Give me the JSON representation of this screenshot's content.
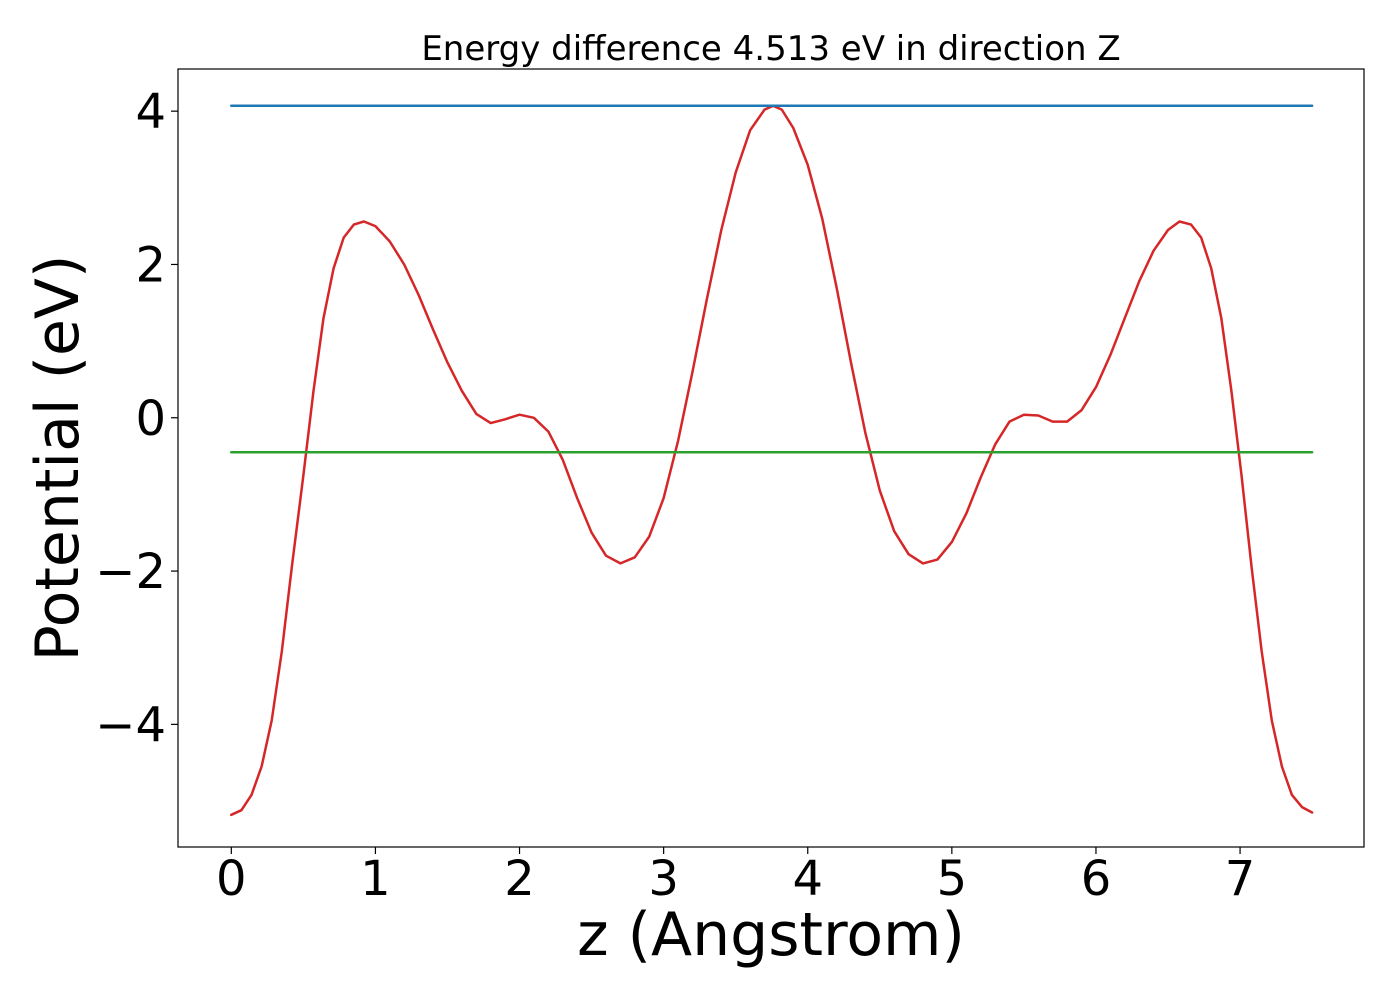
{
  "chart_data": {
    "type": "line",
    "title": "Energy difference 4.513 eV in direction Z",
    "xlabel": "z (Angstrom)",
    "ylabel": "Potential (eV)",
    "xlim": [
      -0.37,
      7.86
    ],
    "ylim": [
      -5.6,
      4.55
    ],
    "xticks": [
      0,
      1,
      2,
      3,
      4,
      5,
      6,
      7
    ],
    "xtick_labels": [
      "0",
      "1",
      "2",
      "3",
      "4",
      "5",
      "6",
      "7"
    ],
    "yticks": [
      -4,
      -2,
      0,
      2,
      4
    ],
    "ytick_labels": [
      "−4",
      "−2",
      "0",
      "2",
      "4"
    ],
    "grid": false,
    "series": [
      {
        "color": "#d62728",
        "points": [
          [
            0.0,
            -5.18
          ],
          [
            0.07,
            -5.12
          ],
          [
            0.14,
            -4.92
          ],
          [
            0.21,
            -4.55
          ],
          [
            0.28,
            -3.95
          ],
          [
            0.35,
            -3.05
          ],
          [
            0.42,
            -1.95
          ],
          [
            0.5,
            -0.75
          ],
          [
            0.57,
            0.35
          ],
          [
            0.64,
            1.3
          ],
          [
            0.71,
            1.95
          ],
          [
            0.78,
            2.35
          ],
          [
            0.85,
            2.52
          ],
          [
            0.92,
            2.56
          ],
          [
            1.0,
            2.5
          ],
          [
            1.1,
            2.3
          ],
          [
            1.2,
            2.0
          ],
          [
            1.3,
            1.6
          ],
          [
            1.4,
            1.15
          ],
          [
            1.5,
            0.72
          ],
          [
            1.6,
            0.35
          ],
          [
            1.7,
            0.05
          ],
          [
            1.8,
            -0.07
          ],
          [
            1.9,
            -0.02
          ],
          [
            2.0,
            0.04
          ],
          [
            2.1,
            0.0
          ],
          [
            2.2,
            -0.18
          ],
          [
            2.3,
            -0.55
          ],
          [
            2.4,
            -1.05
          ],
          [
            2.5,
            -1.5
          ],
          [
            2.6,
            -1.8
          ],
          [
            2.7,
            -1.9
          ],
          [
            2.8,
            -1.82
          ],
          [
            2.9,
            -1.55
          ],
          [
            3.0,
            -1.05
          ],
          [
            3.1,
            -0.3
          ],
          [
            3.2,
            0.6
          ],
          [
            3.3,
            1.55
          ],
          [
            3.4,
            2.45
          ],
          [
            3.5,
            3.2
          ],
          [
            3.6,
            3.75
          ],
          [
            3.7,
            4.02
          ],
          [
            3.76,
            4.07
          ],
          [
            3.82,
            4.02
          ],
          [
            3.9,
            3.78
          ],
          [
            4.0,
            3.3
          ],
          [
            4.1,
            2.6
          ],
          [
            4.2,
            1.7
          ],
          [
            4.3,
            0.72
          ],
          [
            4.4,
            -0.2
          ],
          [
            4.5,
            -0.95
          ],
          [
            4.6,
            -1.48
          ],
          [
            4.7,
            -1.78
          ],
          [
            4.8,
            -1.9
          ],
          [
            4.9,
            -1.85
          ],
          [
            5.0,
            -1.62
          ],
          [
            5.1,
            -1.25
          ],
          [
            5.2,
            -0.78
          ],
          [
            5.3,
            -0.35
          ],
          [
            5.4,
            -0.05
          ],
          [
            5.5,
            0.04
          ],
          [
            5.6,
            0.03
          ],
          [
            5.7,
            -0.05
          ],
          [
            5.8,
            -0.05
          ],
          [
            5.9,
            0.1
          ],
          [
            6.0,
            0.4
          ],
          [
            6.1,
            0.82
          ],
          [
            6.2,
            1.3
          ],
          [
            6.3,
            1.78
          ],
          [
            6.4,
            2.18
          ],
          [
            6.5,
            2.45
          ],
          [
            6.58,
            2.56
          ],
          [
            6.66,
            2.52
          ],
          [
            6.73,
            2.35
          ],
          [
            6.8,
            1.95
          ],
          [
            6.87,
            1.3
          ],
          [
            6.94,
            0.35
          ],
          [
            7.01,
            -0.75
          ],
          [
            7.08,
            -1.95
          ],
          [
            7.15,
            -3.05
          ],
          [
            7.22,
            -3.95
          ],
          [
            7.29,
            -4.55
          ],
          [
            7.36,
            -4.92
          ],
          [
            7.43,
            -5.08
          ],
          [
            7.5,
            -5.15
          ]
        ]
      },
      {
        "color": "#1f77b4",
        "points": [
          [
            0.0,
            4.07
          ],
          [
            7.5,
            4.07
          ]
        ]
      },
      {
        "color": "#2ca02c",
        "points": [
          [
            0.0,
            -0.45
          ],
          [
            7.5,
            -0.45
          ]
        ]
      }
    ]
  }
}
